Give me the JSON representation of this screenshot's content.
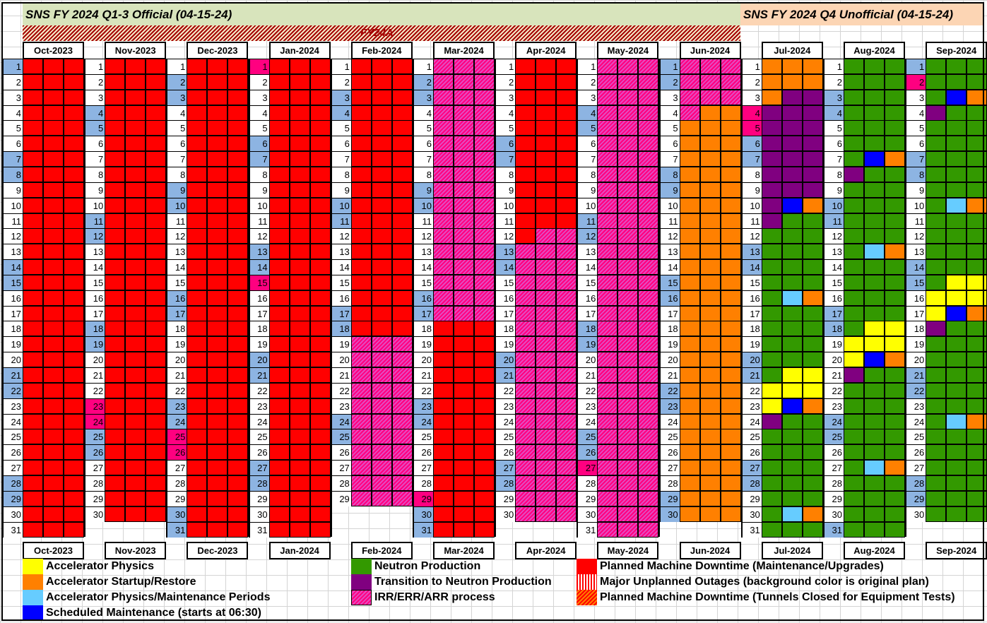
{
  "titles": {
    "official": "SNS FY 2024 Q1-3 Official (04-15-24)",
    "unofficial": "SNS FY 2024 Q4 Unofficial (04-15-24)",
    "run_label": "FY24A"
  },
  "colors": {
    "official_bg": "#d8e4bc",
    "unofficial_bg": "#fcd5b4",
    "weekend": "#8db4e2",
    "holiday": "#ff0080",
    "R": "#ff0000",
    "O": "#ff8000",
    "G": "#339900",
    "P": "#800080",
    "B": "#0000ff",
    "L": "#66ccff",
    "Y": "#ffff00",
    "H": "irr-hatch"
  },
  "months": [
    {
      "label": "Oct-2023",
      "days": 31,
      "weekend": [
        1,
        7,
        8,
        14,
        15,
        21,
        22,
        28,
        29
      ],
      "holiday": [],
      "runs": [
        [
          1,
          31,
          "RRR"
        ]
      ]
    },
    {
      "label": "Nov-2023",
      "days": 30,
      "weekend": [
        4,
        5,
        11,
        12,
        18,
        19,
        25,
        26
      ],
      "holiday": [
        23,
        24
      ],
      "runs": [
        [
          1,
          30,
          "RRR"
        ]
      ]
    },
    {
      "label": "Dec-2023",
      "days": 31,
      "weekend": [
        2,
        3,
        9,
        10,
        16,
        17,
        23,
        24,
        30,
        31
      ],
      "holiday": [
        25,
        26
      ],
      "runs": [
        [
          1,
          31,
          "RRR"
        ]
      ]
    },
    {
      "label": "Jan-2024",
      "days": 31,
      "weekend": [
        6,
        7,
        13,
        14,
        20,
        21,
        27,
        28
      ],
      "holiday": [
        1,
        15
      ],
      "runs": [
        [
          1,
          31,
          "RRR"
        ]
      ]
    },
    {
      "label": "Feb-2024",
      "days": 29,
      "weekend": [
        3,
        4,
        10,
        11,
        17,
        18,
        24,
        25
      ],
      "holiday": [],
      "runs": [
        [
          1,
          18,
          "RRR"
        ],
        [
          19,
          29,
          "HHH"
        ]
      ]
    },
    {
      "label": "Mar-2024",
      "days": 31,
      "weekend": [
        2,
        3,
        9,
        10,
        16,
        17,
        23,
        24,
        30,
        31
      ],
      "holiday": [
        29
      ],
      "runs": [
        [
          1,
          17,
          "HHH"
        ],
        [
          18,
          31,
          "RRR"
        ]
      ]
    },
    {
      "label": "Apr-2024",
      "days": 30,
      "weekend": [
        6,
        7,
        13,
        14,
        20,
        21,
        27,
        28
      ],
      "holiday": [],
      "runs": [
        [
          1,
          11,
          "RRR"
        ],
        [
          12,
          12,
          "RHH"
        ],
        [
          13,
          30,
          "HHH"
        ]
      ]
    },
    {
      "label": "May-2024",
      "days": 31,
      "weekend": [
        4,
        5,
        11,
        12,
        18,
        19,
        25,
        26
      ],
      "holiday": [
        27
      ],
      "runs": [
        [
          1,
          31,
          "HHH"
        ]
      ]
    },
    {
      "label": "Jun-2024",
      "days": 30,
      "weekend": [
        1,
        2,
        8,
        9,
        15,
        16,
        22,
        23,
        29,
        30
      ],
      "holiday": [],
      "runs": [
        [
          1,
          3,
          "HHH"
        ],
        [
          4,
          4,
          "HOO"
        ],
        [
          5,
          30,
          "OOO"
        ]
      ]
    },
    {
      "label": "Jul-2024",
      "days": 31,
      "weekend": [
        6,
        7,
        13,
        14,
        20,
        21,
        27,
        28
      ],
      "holiday": [
        4,
        5
      ],
      "runs": [
        [
          1,
          2,
          "OOO"
        ],
        [
          3,
          3,
          "OPP"
        ],
        [
          4,
          9,
          "PPP"
        ],
        [
          10,
          10,
          "PBO"
        ],
        [
          11,
          11,
          "PGG"
        ],
        [
          12,
          15,
          "GGG"
        ],
        [
          16,
          16,
          "GLO"
        ],
        [
          17,
          20,
          "GGG"
        ],
        [
          21,
          21,
          "GYY"
        ],
        [
          22,
          22,
          "YYY"
        ],
        [
          23,
          23,
          "YBO"
        ],
        [
          24,
          24,
          "PGG"
        ],
        [
          25,
          29,
          "GGG"
        ],
        [
          30,
          30,
          "GLO"
        ],
        [
          31,
          31,
          "GGG"
        ]
      ]
    },
    {
      "label": "Aug-2024",
      "days": 31,
      "weekend": [
        3,
        4,
        10,
        11,
        17,
        18,
        24,
        25,
        31
      ],
      "holiday": [],
      "runs": [
        [
          1,
          6,
          "GGG"
        ],
        [
          7,
          7,
          "GBO"
        ],
        [
          8,
          8,
          "PGG"
        ],
        [
          9,
          12,
          "GGG"
        ],
        [
          13,
          13,
          "GLO"
        ],
        [
          14,
          17,
          "GGG"
        ],
        [
          18,
          18,
          "GYY"
        ],
        [
          19,
          19,
          "YYY"
        ],
        [
          20,
          20,
          "YBO"
        ],
        [
          21,
          21,
          "PGG"
        ],
        [
          22,
          26,
          "GGG"
        ],
        [
          27,
          27,
          "GLO"
        ],
        [
          28,
          31,
          "GGG"
        ]
      ]
    },
    {
      "label": "Sep-2024",
      "days": 30,
      "weekend": [
        1,
        7,
        8,
        14,
        15,
        21,
        22,
        28,
        29
      ],
      "holiday": [
        2
      ],
      "runs": [
        [
          1,
          2,
          "GGG"
        ],
        [
          3,
          3,
          "GBO"
        ],
        [
          4,
          4,
          "PGG"
        ],
        [
          5,
          9,
          "GGG"
        ],
        [
          10,
          10,
          "GLO"
        ],
        [
          11,
          14,
          "GGG"
        ],
        [
          15,
          15,
          "GYY"
        ],
        [
          16,
          16,
          "YYY"
        ],
        [
          17,
          17,
          "YBO"
        ],
        [
          18,
          18,
          "PGG"
        ],
        [
          19,
          23,
          "GGG"
        ],
        [
          24,
          24,
          "GLO"
        ],
        [
          25,
          30,
          "GGG"
        ]
      ]
    }
  ],
  "legend": {
    "col1": [
      {
        "label": "Accelerator Physics",
        "swatch": "Y"
      },
      {
        "label": "Accelerator Startup/Restore",
        "swatch": "O"
      },
      {
        "label": "Accelerator Physics/Maintenance Periods",
        "swatch": "L"
      },
      {
        "label": "Scheduled Maintenance (starts at 06:30)",
        "swatch": "B"
      }
    ],
    "col2": [
      {
        "label": "Neutron Production",
        "swatch": "G"
      },
      {
        "label": "Transition to Neutron Production",
        "swatch": "P"
      },
      {
        "label": "IRR/ERR/ARR process",
        "swatch": "H"
      }
    ],
    "col3": [
      {
        "label": "Planned Machine Downtime (Maintenance/Upgrades)",
        "swatch": "R"
      },
      {
        "label": "Major Unplanned Outages (background color is original plan)",
        "swatch": "stripe"
      },
      {
        "label": "Planned Machine Downtime (Tunnels Closed for Equipment Tests)",
        "swatch": "orangehatch"
      }
    ]
  }
}
